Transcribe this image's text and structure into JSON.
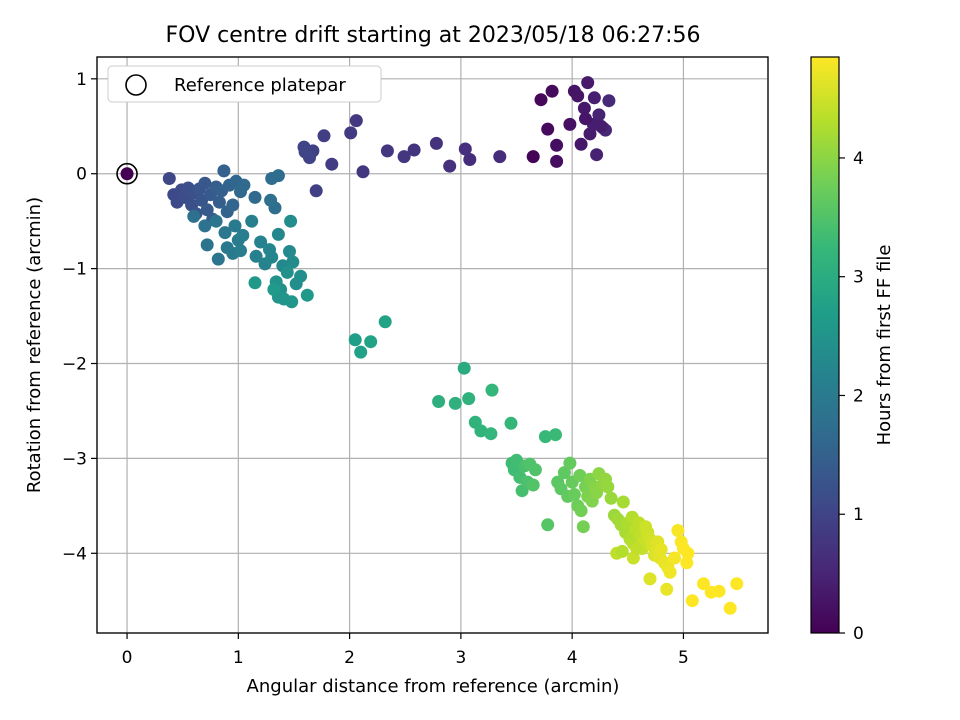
{
  "chart_data": {
    "type": "scatter",
    "title": "FOV centre drift starting at 2023/05/18 06:27:56",
    "xlabel": "Angular distance from reference (arcmin)",
    "ylabel": "Rotation from reference (arcmin)",
    "xlim": [
      -0.27,
      5.76
    ],
    "ylim": [
      -4.84,
      1.23
    ],
    "xticks": [
      0,
      1,
      2,
      3,
      4,
      5
    ],
    "yticks": [
      1,
      0,
      -1,
      -2,
      -3,
      -4
    ],
    "grid": true,
    "legend": {
      "placement": "top-left",
      "entries": [
        "Reference platepar"
      ]
    },
    "reference_point": {
      "x": 0,
      "y": 0
    },
    "colorbar": {
      "label": "Hours from first FF file",
      "colormap": "viridis",
      "range": [
        0,
        4.85
      ],
      "ticks": [
        0,
        1,
        2,
        3,
        4
      ]
    },
    "colormap_stops": [
      "#440154",
      "#482878",
      "#3e4989",
      "#31688e",
      "#26828e",
      "#1f9e89",
      "#35b779",
      "#6ece58",
      "#b5de2b",
      "#fde725"
    ],
    "points": [
      [
        3.65,
        0.18,
        0.05
      ],
      [
        3.72,
        0.78,
        0.1
      ],
      [
        3.78,
        0.47,
        0.12
      ],
      [
        3.82,
        0.87,
        0.15
      ],
      [
        3.86,
        0.13,
        0.18
      ],
      [
        3.86,
        0.3,
        0.2
      ],
      [
        3.98,
        0.52,
        0.22
      ],
      [
        4.02,
        0.87,
        0.25
      ],
      [
        4.05,
        0.82,
        0.27
      ],
      [
        4.08,
        0.31,
        0.3
      ],
      [
        4.11,
        0.69,
        0.32
      ],
      [
        4.14,
        0.96,
        0.35
      ],
      [
        4.16,
        0.42,
        0.37
      ],
      [
        4.19,
        0.52,
        0.4
      ],
      [
        4.2,
        0.8,
        0.42
      ],
      [
        4.22,
        0.2,
        0.45
      ],
      [
        4.24,
        0.62,
        0.47
      ],
      [
        4.28,
        0.48,
        0.5
      ],
      [
        4.3,
        0.46,
        0.52
      ],
      [
        4.33,
        0.77,
        0.55
      ],
      [
        4.12,
        0.58,
        0.28
      ],
      [
        4.26,
        0.5,
        0.38
      ],
      [
        3.35,
        0.18,
        0.6
      ],
      [
        3.08,
        0.15,
        0.62
      ],
      [
        3.04,
        0.26,
        0.65
      ],
      [
        2.9,
        0.08,
        0.68
      ],
      [
        2.78,
        0.32,
        0.7
      ],
      [
        2.58,
        0.25,
        0.73
      ],
      [
        2.49,
        0.18,
        0.76
      ],
      [
        2.34,
        0.24,
        0.78
      ],
      [
        2.12,
        0.02,
        0.8
      ],
      [
        2.06,
        0.56,
        0.82
      ],
      [
        2.01,
        0.43,
        0.85
      ],
      [
        1.84,
        0.1,
        0.88
      ],
      [
        1.77,
        0.4,
        0.9
      ],
      [
        1.7,
        -0.18,
        0.93
      ],
      [
        1.67,
        0.24,
        0.95
      ],
      [
        1.64,
        0.17,
        0.98
      ],
      [
        1.59,
        0.28,
        1.0
      ],
      [
        1.6,
        0.23,
        1.02
      ],
      [
        0.38,
        -0.05,
        1.05
      ],
      [
        0.42,
        -0.22,
        1.08
      ],
      [
        0.45,
        -0.3,
        1.1
      ],
      [
        0.49,
        -0.17,
        1.12
      ],
      [
        0.52,
        -0.25,
        1.15
      ],
      [
        0.55,
        -0.15,
        1.18
      ],
      [
        0.58,
        -0.33,
        1.2
      ],
      [
        0.6,
        -0.2,
        1.22
      ],
      [
        0.62,
        -0.42,
        1.25
      ],
      [
        0.65,
        -0.16,
        1.28
      ],
      [
        0.67,
        -0.28,
        1.3
      ],
      [
        0.7,
        -0.1,
        1.32
      ],
      [
        0.72,
        -0.38,
        1.35
      ],
      [
        0.75,
        -0.22,
        1.38
      ],
      [
        0.77,
        -0.48,
        1.4
      ],
      [
        0.8,
        -0.14,
        1.42
      ],
      [
        0.83,
        -0.3,
        1.45
      ],
      [
        0.85,
        -0.18,
        1.48
      ],
      [
        0.87,
        0.03,
        1.5
      ],
      [
        0.9,
        -0.4,
        1.52
      ],
      [
        0.92,
        -0.12,
        1.55
      ],
      [
        0.95,
        -0.33,
        1.58
      ],
      [
        0.98,
        -0.08,
        1.6
      ],
      [
        1.02,
        -0.19,
        1.62
      ],
      [
        1.05,
        -0.12,
        1.65
      ],
      [
        1.15,
        -0.25,
        1.68
      ],
      [
        1.3,
        -0.05,
        1.7
      ],
      [
        1.36,
        -0.02,
        1.72
      ],
      [
        1.33,
        -0.36,
        1.75
      ],
      [
        1.29,
        -0.28,
        1.78
      ],
      [
        0.6,
        -0.45,
        1.8
      ],
      [
        0.7,
        -0.55,
        1.82
      ],
      [
        0.72,
        -0.75,
        1.85
      ],
      [
        0.8,
        -0.5,
        1.88
      ],
      [
        0.82,
        -0.9,
        1.9
      ],
      [
        0.88,
        -0.62,
        1.92
      ],
      [
        0.9,
        -0.78,
        1.95
      ],
      [
        0.95,
        -0.84,
        1.98
      ],
      [
        0.97,
        -0.55,
        2.0
      ],
      [
        1.0,
        -0.7,
        2.02
      ],
      [
        1.02,
        -0.81,
        2.05
      ],
      [
        1.04,
        -0.65,
        2.08
      ],
      [
        1.12,
        -0.5,
        2.1
      ],
      [
        1.16,
        -0.87,
        2.12
      ],
      [
        1.2,
        -0.72,
        2.15
      ],
      [
        1.24,
        -0.95,
        2.18
      ],
      [
        1.28,
        -0.8,
        2.2
      ],
      [
        1.3,
        -0.88,
        2.22
      ],
      [
        1.36,
        -0.64,
        2.25
      ],
      [
        1.4,
        -0.97,
        2.28
      ],
      [
        1.46,
        -0.82,
        2.3
      ],
      [
        1.49,
        -0.93,
        2.32
      ],
      [
        1.47,
        -0.5,
        2.35
      ],
      [
        1.52,
        -1.16,
        2.38
      ],
      [
        1.56,
        -1.08,
        2.4
      ],
      [
        1.44,
        -1.04,
        2.42
      ],
      [
        1.38,
        -1.22,
        2.45
      ],
      [
        1.34,
        -1.14,
        2.48
      ],
      [
        1.36,
        -1.3,
        2.5
      ],
      [
        1.41,
        -1.32,
        2.52
      ],
      [
        1.48,
        -1.35,
        2.55
      ],
      [
        1.62,
        -1.28,
        2.58
      ],
      [
        1.15,
        -1.15,
        2.6
      ],
      [
        1.32,
        -1.22,
        2.62
      ],
      [
        2.05,
        -1.75,
        2.72
      ],
      [
        2.1,
        -1.88,
        2.75
      ],
      [
        2.19,
        -1.77,
        2.78
      ],
      [
        2.32,
        -1.56,
        2.8
      ],
      [
        3.03,
        -2.05,
        2.95
      ],
      [
        2.8,
        -2.4,
        3.05
      ],
      [
        2.95,
        -2.42,
        3.08
      ],
      [
        3.07,
        -2.37,
        3.1
      ],
      [
        3.13,
        -2.62,
        3.12
      ],
      [
        3.18,
        -2.71,
        3.15
      ],
      [
        3.27,
        -2.74,
        3.18
      ],
      [
        3.28,
        -2.28,
        3.2
      ],
      [
        3.45,
        -2.63,
        3.22
      ],
      [
        3.76,
        -2.77,
        3.25
      ],
      [
        3.85,
        -2.75,
        3.28
      ],
      [
        3.46,
        -3.05,
        3.3
      ],
      [
        3.48,
        -3.12,
        3.32
      ],
      [
        3.5,
        -3.02,
        3.35
      ],
      [
        3.53,
        -3.2,
        3.38
      ],
      [
        3.55,
        -3.34,
        3.4
      ],
      [
        3.57,
        -3.08,
        3.42
      ],
      [
        3.6,
        -3.25,
        3.45
      ],
      [
        3.62,
        -3.06,
        3.48
      ],
      [
        3.67,
        -3.12,
        3.5
      ],
      [
        3.65,
        -3.28,
        3.52
      ],
      [
        3.78,
        -3.7,
        3.55
      ],
      [
        3.87,
        -3.25,
        3.58
      ],
      [
        3.9,
        -3.32,
        3.6
      ],
      [
        3.93,
        -3.15,
        3.62
      ],
      [
        3.96,
        -3.4,
        3.65
      ],
      [
        3.98,
        -3.05,
        3.68
      ],
      [
        4.0,
        -3.25,
        3.7
      ],
      [
        4.02,
        -3.38,
        3.72
      ],
      [
        4.05,
        -3.5,
        3.75
      ],
      [
        4.07,
        -3.18,
        3.78
      ],
      [
        4.08,
        -3.55,
        3.8
      ],
      [
        4.1,
        -3.72,
        3.82
      ],
      [
        4.12,
        -3.3,
        3.85
      ],
      [
        4.14,
        -3.4,
        3.88
      ],
      [
        4.16,
        -3.22,
        3.9
      ],
      [
        4.18,
        -3.45,
        3.92
      ],
      [
        4.2,
        -3.3,
        3.95
      ],
      [
        4.22,
        -3.36,
        3.98
      ],
      [
        4.24,
        -3.16,
        4.0
      ],
      [
        4.27,
        -3.28,
        4.02
      ],
      [
        4.3,
        -3.22,
        4.05
      ],
      [
        4.32,
        -3.3,
        4.08
      ],
      [
        4.35,
        -3.42,
        4.1
      ],
      [
        4.38,
        -3.6,
        4.12
      ],
      [
        4.41,
        -3.64,
        4.15
      ],
      [
        4.44,
        -3.7,
        4.18
      ],
      [
        4.46,
        -3.46,
        4.2
      ],
      [
        4.48,
        -3.78,
        4.22
      ],
      [
        4.5,
        -3.68,
        4.25
      ],
      [
        4.52,
        -3.85,
        4.28
      ],
      [
        4.54,
        -3.62,
        4.3
      ],
      [
        4.55,
        -3.9,
        4.32
      ],
      [
        4.57,
        -3.75,
        4.35
      ],
      [
        4.6,
        -3.68,
        4.38
      ],
      [
        4.62,
        -3.82,
        4.4
      ],
      [
        4.63,
        -3.95,
        4.42
      ],
      [
        4.65,
        -3.88,
        4.45
      ],
      [
        4.66,
        -3.72,
        4.48
      ],
      [
        4.68,
        -3.78,
        4.5
      ],
      [
        4.7,
        -3.85,
        4.52
      ],
      [
        4.72,
        -3.92,
        4.55
      ],
      [
        4.74,
        -4.02,
        4.58
      ],
      [
        4.75,
        -3.98,
        4.6
      ],
      [
        4.77,
        -3.88,
        4.62
      ],
      [
        4.79,
        -4.05,
        4.65
      ],
      [
        4.8,
        -3.96,
        4.68
      ],
      [
        4.83,
        -4.1,
        4.7
      ],
      [
        4.86,
        -4.15,
        4.72
      ],
      [
        4.88,
        -4.2,
        4.75
      ],
      [
        4.92,
        -4.05,
        4.78
      ],
      [
        4.95,
        -3.76,
        4.8
      ],
      [
        4.98,
        -3.88,
        4.82
      ],
      [
        5.0,
        -3.95,
        4.84
      ],
      [
        5.04,
        -4.0,
        4.85
      ],
      [
        5.03,
        -4.1,
        4.85
      ],
      [
        5.08,
        -4.5,
        4.85
      ],
      [
        5.18,
        -4.32,
        4.85
      ],
      [
        5.25,
        -4.41,
        4.85
      ],
      [
        5.32,
        -4.4,
        4.85
      ],
      [
        5.42,
        -4.58,
        4.85
      ],
      [
        5.48,
        -4.32,
        4.85
      ],
      [
        4.4,
        -4.0,
        4.4
      ],
      [
        4.45,
        -3.98,
        4.3
      ],
      [
        4.55,
        -4.05,
        4.45
      ],
      [
        4.7,
        -4.27,
        4.6
      ],
      [
        4.85,
        -4.38,
        4.7
      ],
      [
        4.58,
        -3.95,
        4.4
      ]
    ]
  }
}
